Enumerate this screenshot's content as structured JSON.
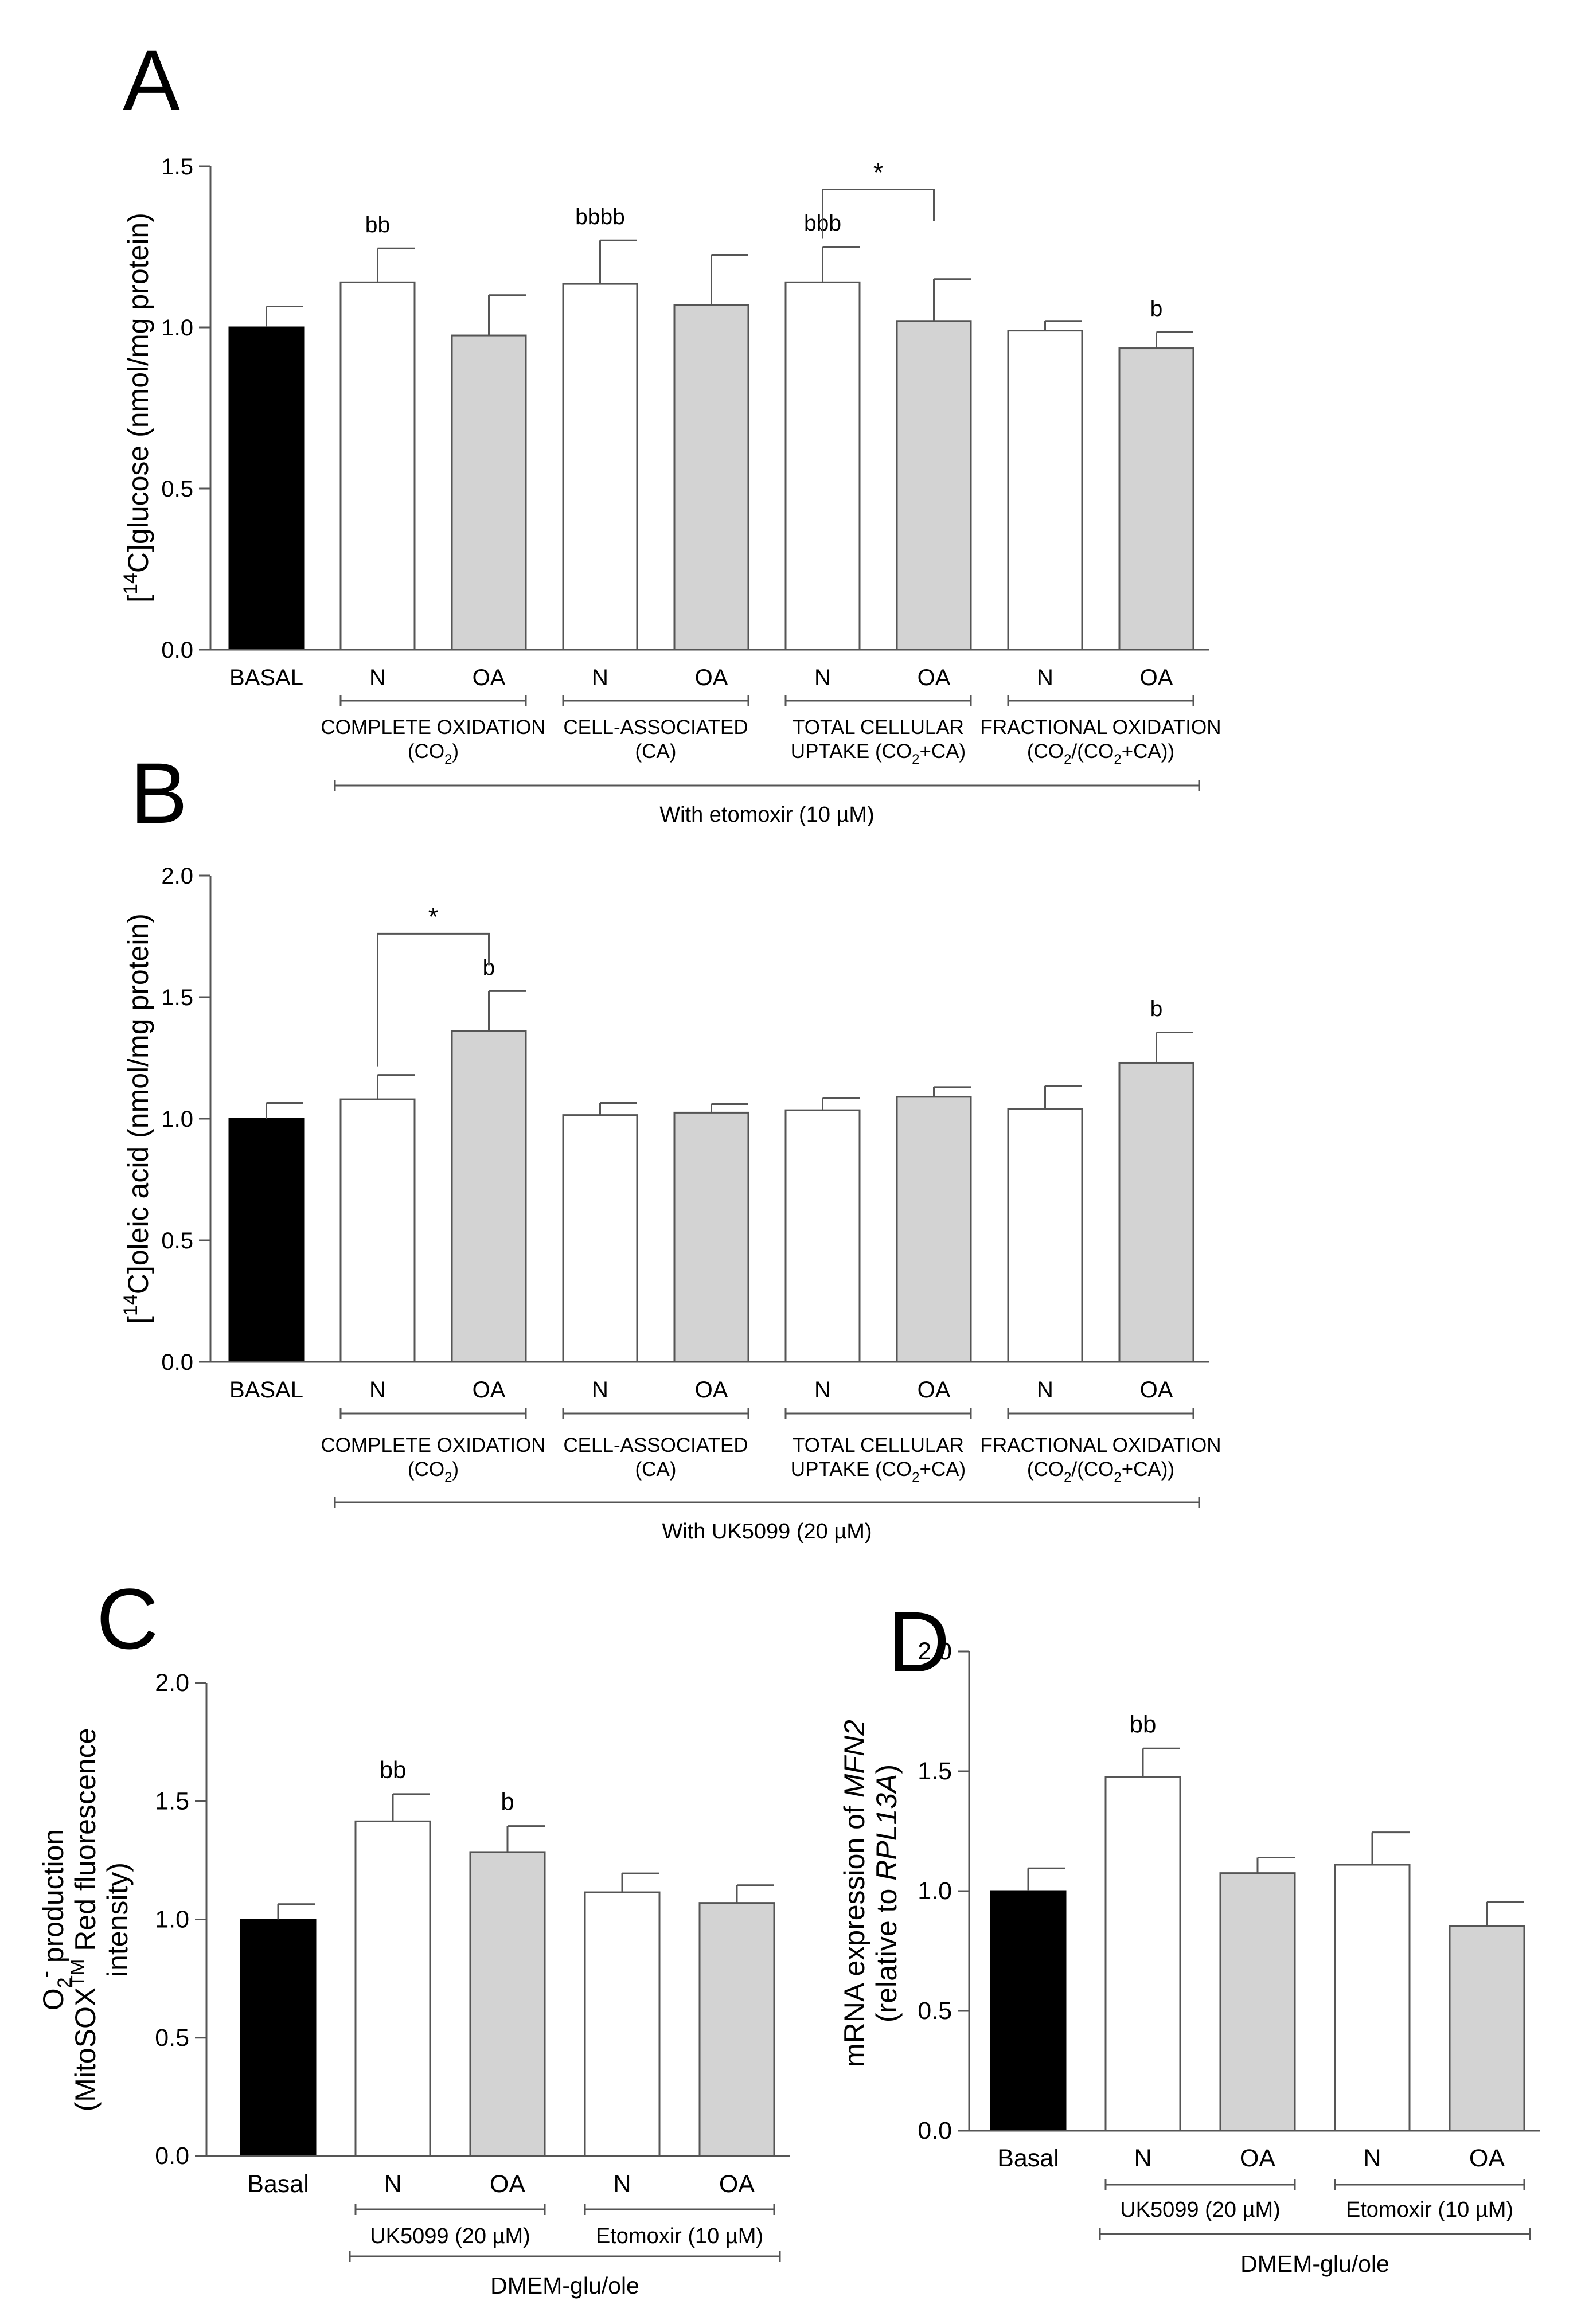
{
  "chart_data": [
    {
      "panel": "A",
      "type": "bar",
      "ylabel": {
        "bracket": "[",
        "sup": "14",
        "main": "C]glucose (nmol/mg protein)"
      },
      "ylim": [
        0,
        1.5
      ],
      "yticks": [
        "0.0",
        "0.5",
        "1.0",
        "1.5"
      ],
      "ytick_values": [
        0,
        0.5,
        1.0,
        1.5
      ],
      "categories": [
        "BASAL",
        "N",
        "OA",
        "N",
        "OA",
        "N",
        "OA",
        "N",
        "OA"
      ],
      "values": [
        1.0,
        1.14,
        0.975,
        1.135,
        1.07,
        1.14,
        1.02,
        0.99,
        0.935
      ],
      "errors": [
        0.065,
        0.105,
        0.125,
        0.135,
        0.155,
        0.11,
        0.13,
        0.03,
        0.05
      ],
      "fills": [
        "#000000",
        "#ffffff",
        "#d3d3d3",
        "#ffffff",
        "#d3d3d3",
        "#ffffff",
        "#d3d3d3",
        "#ffffff",
        "#d3d3d3"
      ],
      "annotations": [
        "",
        "bb",
        "",
        "bbbb",
        "",
        "bbb",
        "",
        "",
        "b"
      ],
      "significance": [
        {
          "from": 5,
          "to": 6,
          "label": "*"
        }
      ],
      "groups": [
        {
          "from": 1,
          "to": 2,
          "lines": [
            [
              {
                "t": "COMPLETE OXIDATION"
              }
            ],
            [
              {
                "t": "(CO"
              },
              {
                "t": "2",
                "sub": true
              },
              {
                "t": ")"
              }
            ]
          ]
        },
        {
          "from": 3,
          "to": 4,
          "lines": [
            [
              {
                "t": "CELL-ASSOCIATED"
              }
            ],
            [
              {
                "t": "(CA)"
              }
            ]
          ]
        },
        {
          "from": 5,
          "to": 6,
          "lines": [
            [
              {
                "t": "TOTAL CELLULAR"
              }
            ],
            [
              {
                "t": "UPTAKE (CO"
              },
              {
                "t": "2",
                "sub": true
              },
              {
                "t": "+CA)"
              }
            ]
          ]
        },
        {
          "from": 7,
          "to": 8,
          "lines": [
            [
              {
                "t": "FRACTIONAL OXIDATION"
              }
            ],
            [
              {
                "t": "(CO"
              },
              {
                "t": "2",
                "sub": true
              },
              {
                "t": "/(CO"
              },
              {
                "t": "2",
                "sub": true
              },
              {
                "t": "+CA))"
              }
            ]
          ]
        }
      ],
      "overall": {
        "from": 1,
        "to": 8,
        "text": "With etomoxir (10 µM)"
      }
    },
    {
      "panel": "B",
      "type": "bar",
      "ylabel": {
        "bracket": "[",
        "sup": "14",
        "main": "C]oleic acid (nmol/mg protein)"
      },
      "ylim": [
        0,
        2.0
      ],
      "yticks": [
        "0.0",
        "0.5",
        "1.0",
        "1.5",
        "2.0"
      ],
      "ytick_values": [
        0,
        0.5,
        1.0,
        1.5,
        2.0
      ],
      "categories": [
        "BASAL",
        "N",
        "OA",
        "N",
        "OA",
        "N",
        "OA",
        "N",
        "OA"
      ],
      "values": [
        1.0,
        1.08,
        1.36,
        1.015,
        1.025,
        1.035,
        1.09,
        1.04,
        1.23
      ],
      "errors": [
        0.065,
        0.1,
        0.165,
        0.05,
        0.035,
        0.05,
        0.04,
        0.095,
        0.125
      ],
      "fills": [
        "#000000",
        "#ffffff",
        "#d3d3d3",
        "#ffffff",
        "#d3d3d3",
        "#ffffff",
        "#d3d3d3",
        "#ffffff",
        "#d3d3d3"
      ],
      "annotations": [
        "",
        "",
        "b",
        "",
        "",
        "",
        "",
        "",
        "b"
      ],
      "significance": [
        {
          "from": 1,
          "to": 2,
          "label": "*"
        }
      ],
      "groups": [
        {
          "from": 1,
          "to": 2,
          "lines": [
            [
              {
                "t": "COMPLETE OXIDATION"
              }
            ],
            [
              {
                "t": "(CO"
              },
              {
                "t": "2",
                "sub": true
              },
              {
                "t": ")"
              }
            ]
          ]
        },
        {
          "from": 3,
          "to": 4,
          "lines": [
            [
              {
                "t": "CELL-ASSOCIATED"
              }
            ],
            [
              {
                "t": "(CA)"
              }
            ]
          ]
        },
        {
          "from": 5,
          "to": 6,
          "lines": [
            [
              {
                "t": "TOTAL CELLULAR"
              }
            ],
            [
              {
                "t": "UPTAKE (CO"
              },
              {
                "t": "2",
                "sub": true
              },
              {
                "t": "+CA)"
              }
            ]
          ]
        },
        {
          "from": 7,
          "to": 8,
          "lines": [
            [
              {
                "t": "FRACTIONAL OXIDATION"
              }
            ],
            [
              {
                "t": "(CO"
              },
              {
                "t": "2",
                "sub": true
              },
              {
                "t": "/(CO"
              },
              {
                "t": "2",
                "sub": true
              },
              {
                "t": "+CA))"
              }
            ]
          ]
        }
      ],
      "overall": {
        "from": 1,
        "to": 8,
        "text": "With UK5099 (20 µM)"
      }
    },
    {
      "panel": "C",
      "type": "bar",
      "ylabel_lines": [
        [
          {
            "t": "O"
          },
          {
            "t": "2",
            "sub": true
          },
          {
            "t": "-",
            "sup": true
          },
          {
            "t": " production"
          }
        ],
        [
          {
            "t": "(MitoSOX"
          },
          {
            "t": "TM",
            "sup": true
          },
          {
            "t": " Red fluorescence"
          }
        ],
        [
          {
            "t": "intensity)"
          }
        ]
      ],
      "ylim": [
        0,
        2.0
      ],
      "yticks": [
        "0.0",
        "0.5",
        "1.0",
        "1.5",
        "2.0"
      ],
      "ytick_values": [
        0,
        0.5,
        1.0,
        1.5,
        2.0
      ],
      "categories": [
        "Basal",
        "N",
        "OA",
        "N",
        "OA"
      ],
      "values": [
        1.0,
        1.415,
        1.285,
        1.115,
        1.07
      ],
      "errors": [
        0.065,
        0.115,
        0.11,
        0.08,
        0.075
      ],
      "fills": [
        "#000000",
        "#ffffff",
        "#d3d3d3",
        "#ffffff",
        "#d3d3d3"
      ],
      "annotations": [
        "",
        "bb",
        "b",
        "",
        ""
      ],
      "significance": [],
      "groups": [
        {
          "from": 1,
          "to": 2,
          "lines": [
            [
              {
                "t": "UK5099 (20 µM)"
              }
            ]
          ]
        },
        {
          "from": 3,
          "to": 4,
          "lines": [
            [
              {
                "t": "Etomoxir  (10 µM)"
              }
            ]
          ]
        }
      ],
      "overall": {
        "from": 1,
        "to": 4,
        "text": "DMEM-glu/ole"
      }
    },
    {
      "panel": "D",
      "type": "bar",
      "ylabel_lines": [
        [
          {
            "t": "mRNA expression of "
          },
          {
            "t": "MFN2",
            "italic": true
          }
        ],
        [
          {
            "t": "(relative to "
          },
          {
            "t": "RPL13A",
            "italic": true
          },
          {
            "t": ")"
          }
        ]
      ],
      "ylim": [
        0,
        2.0
      ],
      "yticks": [
        "0.0",
        "0.5",
        "1.0",
        "1.5",
        "2.0"
      ],
      "ytick_values": [
        0,
        0.5,
        1.0,
        1.5,
        2.0
      ],
      "categories": [
        "Basal",
        "N",
        "OA",
        "N",
        "OA"
      ],
      "values": [
        1.0,
        1.475,
        1.075,
        1.11,
        0.855
      ],
      "errors": [
        0.095,
        0.12,
        0.065,
        0.135,
        0.1
      ],
      "fills": [
        "#000000",
        "#ffffff",
        "#d3d3d3",
        "#ffffff",
        "#d3d3d3"
      ],
      "annotations": [
        "",
        "bb",
        "",
        "",
        ""
      ],
      "significance": [],
      "groups": [
        {
          "from": 1,
          "to": 2,
          "lines": [
            [
              {
                "t": "UK5099 (20 µM)"
              }
            ]
          ]
        },
        {
          "from": 3,
          "to": 4,
          "lines": [
            [
              {
                "t": "Etomoxir  (10 µM)"
              }
            ]
          ]
        }
      ],
      "overall": {
        "from": 1,
        "to": 4,
        "text": "DMEM-glu/ole"
      }
    }
  ]
}
